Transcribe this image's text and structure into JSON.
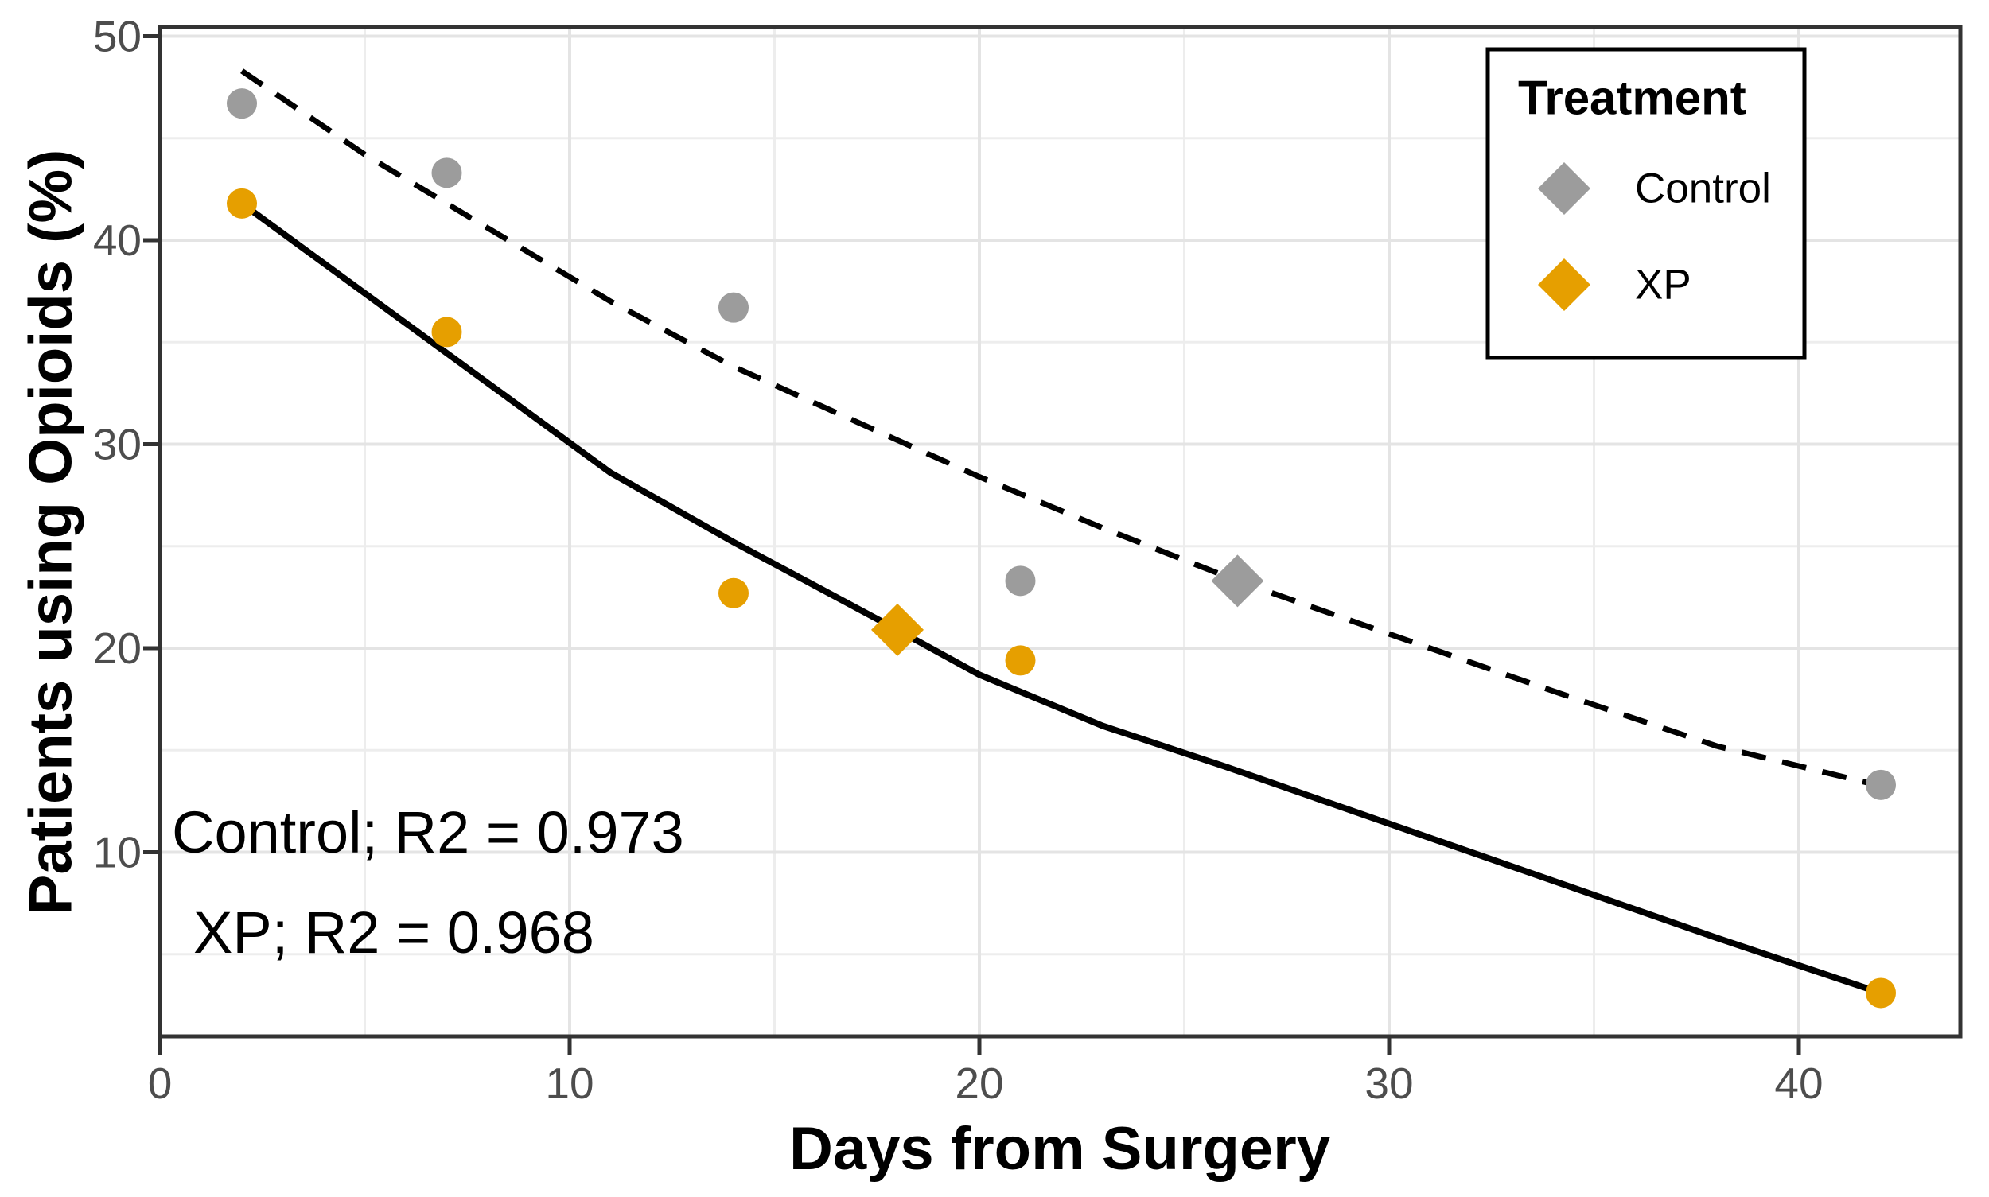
{
  "chart_data": {
    "type": "scatter",
    "title": "",
    "xlabel": "Days from Surgery",
    "ylabel": "Patients using Opioids (%)",
    "xlim": [
      0,
      44
    ],
    "ylim": [
      1,
      50.4
    ],
    "grid": true,
    "x_ticks": [
      {
        "v": 0,
        "label": "0"
      },
      {
        "v": 10,
        "label": "10"
      },
      {
        "v": 20,
        "label": "20"
      },
      {
        "v": 30,
        "label": "30"
      },
      {
        "v": 40,
        "label": "40"
      }
    ],
    "y_ticks": [
      {
        "v": 10,
        "label": "10"
      },
      {
        "v": 20,
        "label": "20"
      },
      {
        "v": 30,
        "label": "30"
      },
      {
        "v": 40,
        "label": "40"
      },
      {
        "v": 50,
        "label": "50"
      }
    ],
    "x_minor_ticks": [
      5,
      15,
      25,
      35
    ],
    "y_minor_ticks": [
      5,
      15,
      25,
      35,
      45
    ],
    "colors": {
      "control": "#9c9c9c",
      "xp": "#E69F00",
      "fit_line": "#000000",
      "grid_major": "#e4e4e4",
      "grid_minor": "#ededed",
      "panel_border": "#333333",
      "tick": "#333333",
      "tick_label": "#4d4d4d"
    },
    "legend": {
      "title": "Treatment",
      "position": "top-right",
      "items": [
        {
          "label": "Control",
          "marker": "diamond",
          "color": "#9c9c9c"
        },
        {
          "label": "XP",
          "marker": "diamond",
          "color": "#E69F00"
        }
      ]
    },
    "series": [
      {
        "name": "Control",
        "marker": "circle",
        "color": "#9c9c9c",
        "points": [
          [
            2,
            46.7
          ],
          [
            7,
            43.3
          ],
          [
            14,
            36.7
          ],
          [
            21,
            23.3
          ],
          [
            42,
            13.3
          ]
        ],
        "diamond_point": [
          26.3,
          23.3
        ],
        "fit_line": {
          "style": "dashed",
          "color": "#000000",
          "r2": 0.973,
          "points": [
            [
              2,
              48.3
            ],
            [
              5,
              44.2
            ],
            [
              8,
              40.6
            ],
            [
              11,
              37.0
            ],
            [
              14,
              33.8
            ],
            [
              17,
              31.1
            ],
            [
              20,
              28.4
            ],
            [
              23,
              25.9
            ],
            [
              26.3,
              23.3
            ],
            [
              30,
              20.7
            ],
            [
              34,
              17.9
            ],
            [
              38,
              15.2
            ],
            [
              42,
              13.25
            ]
          ]
        }
      },
      {
        "name": "XP",
        "marker": "circle",
        "color": "#E69F00",
        "points": [
          [
            2,
            41.8
          ],
          [
            7,
            35.5
          ],
          [
            14,
            22.7
          ],
          [
            21,
            19.4
          ],
          [
            42,
            3.1
          ]
        ],
        "diamond_point": [
          18,
          20.9
        ],
        "fit_line": {
          "style": "solid",
          "color": "#000000",
          "r2": 0.968,
          "points": [
            [
              2,
              41.8
            ],
            [
              5,
              37.4
            ],
            [
              8,
              33.0
            ],
            [
              11,
              28.6
            ],
            [
              14,
              25.2
            ],
            [
              18,
              20.9
            ],
            [
              20,
              18.7
            ],
            [
              23,
              16.2
            ],
            [
              26,
              14.2
            ],
            [
              30,
              11.4
            ],
            [
              34,
              8.6
            ],
            [
              38,
              5.8
            ],
            [
              42,
              3.1
            ]
          ]
        }
      }
    ],
    "annotations": [
      {
        "text": "Control; R2 = 0.973"
      },
      {
        "text": "XP; R2 = 0.968"
      }
    ]
  }
}
